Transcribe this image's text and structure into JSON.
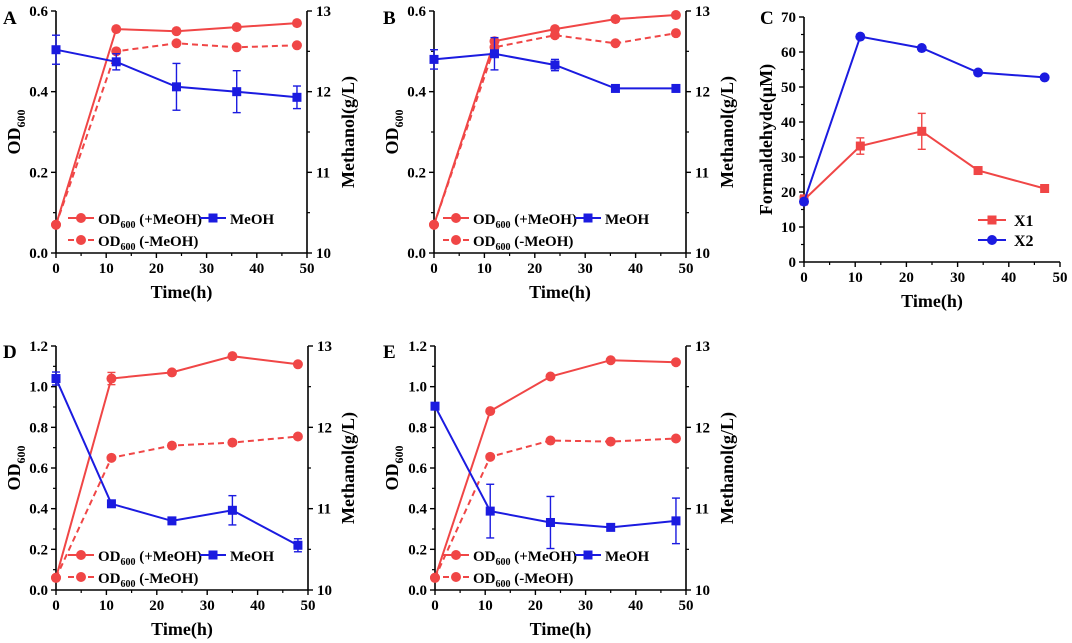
{
  "colors": {
    "red": "#f04646",
    "blue": "#1b1be0",
    "axis": "#000000"
  },
  "chart_data": [
    {
      "panel": "A",
      "type": "line",
      "xlabel": "Time(h)",
      "ylabel_left": "OD",
      "ylabel_left_sub": "600",
      "ylabel_right": "Methanol(g/L)",
      "xlim": [
        0,
        50
      ],
      "xticks": [
        "0",
        "10",
        "20",
        "30",
        "40",
        "50"
      ],
      "ylim_left": [
        0,
        0.6
      ],
      "yticks_left": [
        "0.0",
        "0.2",
        "0.4",
        "0.6"
      ],
      "ylim_right": [
        10,
        13
      ],
      "yticks_right": [
        "10",
        "11",
        "12",
        "13"
      ],
      "series": [
        {
          "name": "OD600 (+MeOH)",
          "axis": "left",
          "color": "red",
          "marker": "circle",
          "dash": false,
          "x": [
            0,
            12,
            24,
            36,
            48
          ],
          "y": [
            0.07,
            0.555,
            0.55,
            0.56,
            0.57
          ]
        },
        {
          "name": "OD600 (-MeOH)",
          "axis": "left",
          "color": "red",
          "marker": "circle",
          "dash": true,
          "x": [
            0,
            12,
            24,
            36,
            48
          ],
          "y": [
            0.07,
            0.5,
            0.52,
            0.51,
            0.515
          ]
        },
        {
          "name": "MeOH",
          "axis": "right",
          "color": "blue",
          "marker": "square",
          "dash": false,
          "x": [
            0,
            12,
            24,
            36,
            48
          ],
          "y": [
            12.52,
            12.37,
            12.06,
            12.0,
            11.93
          ],
          "err": [
            0.18,
            0.1,
            0.29,
            0.26,
            0.14
          ]
        }
      ],
      "legend": [
        {
          "label": "OD",
          "sub": "600",
          "tail": " (+MeOH)"
        },
        {
          "label": "MeOH",
          "sub": "",
          "tail": ""
        },
        {
          "label": "OD",
          "sub": "600",
          "tail": " (-MeOH)"
        }
      ]
    },
    {
      "panel": "B",
      "type": "line",
      "xlabel": "Time(h)",
      "ylabel_left": "OD",
      "ylabel_left_sub": "600",
      "ylabel_right": "Methanol(g/L)",
      "xlim": [
        0,
        50
      ],
      "xticks": [
        "0",
        "10",
        "20",
        "30",
        "40",
        "50"
      ],
      "ylim_left": [
        0,
        0.6
      ],
      "yticks_left": [
        "0.0",
        "0.2",
        "0.4",
        "0.6"
      ],
      "ylim_right": [
        10,
        13
      ],
      "yticks_right": [
        "10",
        "11",
        "12",
        "13"
      ],
      "series": [
        {
          "name": "OD600 (+MeOH)",
          "axis": "left",
          "color": "red",
          "marker": "circle",
          "dash": false,
          "x": [
            0,
            12,
            24,
            36,
            48
          ],
          "y": [
            0.07,
            0.525,
            0.555,
            0.58,
            0.59
          ]
        },
        {
          "name": "OD600 (-MeOH)",
          "axis": "left",
          "color": "red",
          "marker": "circle",
          "dash": true,
          "x": [
            0,
            12,
            24,
            36,
            48
          ],
          "y": [
            0.07,
            0.51,
            0.54,
            0.52,
            0.545
          ]
        },
        {
          "name": "MeOH",
          "axis": "right",
          "color": "blue",
          "marker": "square",
          "dash": false,
          "x": [
            0,
            12,
            24,
            36,
            48
          ],
          "y": [
            12.4,
            12.47,
            12.33,
            12.04,
            12.04
          ],
          "err": [
            0.12,
            0.2,
            0.07,
            0.02,
            0.02
          ]
        }
      ],
      "legend": [
        {
          "label": "OD",
          "sub": "600",
          "tail": " (+MeOH)"
        },
        {
          "label": "MeOH",
          "sub": "",
          "tail": ""
        },
        {
          "label": "OD",
          "sub": "600",
          "tail": " (-MeOH)"
        }
      ]
    },
    {
      "panel": "C",
      "type": "line",
      "xlabel": "Time(h)",
      "ylabel_left": "Formaldehyde(μM)",
      "ylabel_left_sub": "",
      "ylabel_right": "",
      "xlim": [
        0,
        50
      ],
      "xticks": [
        "0",
        "10",
        "20",
        "30",
        "40",
        "50"
      ],
      "ylim_left": [
        0,
        75
      ],
      "yticks_left": [
        "0",
        "10",
        "20",
        "30",
        "40",
        "50",
        "60",
        "70"
      ],
      "series": [
        {
          "name": "X1",
          "axis": "left",
          "color": "red",
          "marker": "square",
          "dash": false,
          "x": [
            0,
            11,
            23,
            34,
            47
          ],
          "y": [
            19,
            35.5,
            40,
            28,
            22.5
          ],
          "err": [
            1.5,
            2.5,
            5.5,
            0.5,
            0.5
          ]
        },
        {
          "name": "X2",
          "axis": "left",
          "color": "blue",
          "marker": "circle",
          "dash": false,
          "x": [
            0,
            11,
            23,
            34,
            47
          ],
          "y": [
            18.5,
            69,
            65.5,
            58,
            56.5
          ]
        }
      ],
      "legend": [
        {
          "label": "X1",
          "sub": "",
          "tail": ""
        },
        {
          "label": "X2",
          "sub": "",
          "tail": ""
        }
      ]
    },
    {
      "panel": "D",
      "type": "line",
      "xlabel": "Time(h)",
      "ylabel_left": "OD",
      "ylabel_left_sub": "600",
      "ylabel_right": "Methanol(g/L)",
      "xlim": [
        0,
        50
      ],
      "xticks": [
        "0",
        "10",
        "20",
        "30",
        "40",
        "50"
      ],
      "ylim_left": [
        0,
        1.2
      ],
      "yticks_left": [
        "0.0",
        "0.2",
        "0.4",
        "0.6",
        "0.8",
        "1.0",
        "1.2"
      ],
      "ylim_right": [
        10,
        13
      ],
      "yticks_right": [
        "10",
        "11",
        "12",
        "13"
      ],
      "series": [
        {
          "name": "OD600 (+MeOH)",
          "axis": "left",
          "color": "red",
          "marker": "circle",
          "dash": false,
          "x": [
            0,
            11,
            23,
            35,
            48
          ],
          "y": [
            0.06,
            1.04,
            1.07,
            1.15,
            1.11
          ],
          "err": [
            0,
            0.03,
            0,
            0,
            0
          ]
        },
        {
          "name": "OD600 (-MeOH)",
          "axis": "left",
          "color": "red",
          "marker": "circle",
          "dash": true,
          "x": [
            0,
            11,
            23,
            35,
            48
          ],
          "y": [
            0.06,
            0.65,
            0.71,
            0.725,
            0.755
          ]
        },
        {
          "name": "MeOH",
          "axis": "right",
          "color": "blue",
          "marker": "square",
          "dash": false,
          "x": [
            0,
            11,
            23,
            35,
            48
          ],
          "y": [
            12.6,
            11.06,
            10.85,
            10.98,
            10.55
          ],
          "err": [
            0.08,
            0.02,
            0.03,
            0.18,
            0.08
          ]
        }
      ],
      "legend": [
        {
          "label": "OD",
          "sub": "600",
          "tail": " (+MeOH)"
        },
        {
          "label": "MeOH",
          "sub": "",
          "tail": ""
        },
        {
          "label": "OD",
          "sub": "600",
          "tail": " (-MeOH)"
        }
      ]
    },
    {
      "panel": "E",
      "type": "line",
      "xlabel": "Time(h)",
      "ylabel_left": "OD",
      "ylabel_left_sub": "600",
      "ylabel_right": "Methanol(g/L)",
      "xlim": [
        0,
        50
      ],
      "xticks": [
        "0",
        "10",
        "20",
        "30",
        "40",
        "50"
      ],
      "ylim_left": [
        0,
        1.2
      ],
      "yticks_left": [
        "0.0",
        "0.2",
        "0.4",
        "0.6",
        "0.8",
        "1.0",
        "1.2"
      ],
      "ylim_right": [
        10,
        13
      ],
      "yticks_right": [
        "10",
        "11",
        "12",
        "13"
      ],
      "series": [
        {
          "name": "OD600 (+MeOH)",
          "axis": "left",
          "color": "red",
          "marker": "circle",
          "dash": false,
          "x": [
            0,
            11,
            23,
            35,
            48
          ],
          "y": [
            0.06,
            0.88,
            1.05,
            1.13,
            1.12
          ]
        },
        {
          "name": "OD600 (-MeOH)",
          "axis": "left",
          "color": "red",
          "marker": "circle",
          "dash": true,
          "x": [
            0,
            11,
            23,
            35,
            48
          ],
          "y": [
            0.06,
            0.655,
            0.735,
            0.73,
            0.745
          ]
        },
        {
          "name": "MeOH",
          "axis": "right",
          "color": "blue",
          "marker": "square",
          "dash": false,
          "x": [
            0,
            11,
            23,
            35,
            48
          ],
          "y": [
            12.26,
            10.97,
            10.83,
            10.77,
            10.85
          ],
          "err": [
            0.04,
            0.33,
            0.32,
            0.02,
            0.28
          ]
        }
      ],
      "legend": [
        {
          "label": "OD",
          "sub": "600",
          "tail": " (+MeOH)"
        },
        {
          "label": "MeOH",
          "sub": "",
          "tail": ""
        },
        {
          "label": "OD",
          "sub": "600",
          "tail": " (-MeOH)"
        }
      ]
    }
  ]
}
